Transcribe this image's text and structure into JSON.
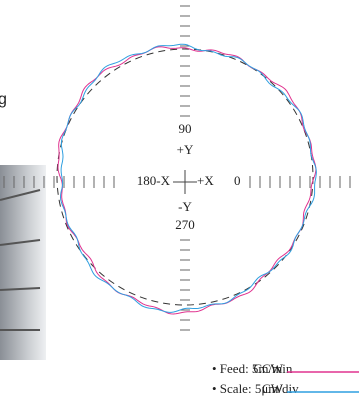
{
  "side_text": "g",
  "axis_labels": {
    "top_angle": "90",
    "top_axis": "+Y",
    "left": "180-X",
    "right_axis": "+X",
    "right_angle": "0",
    "bottom_axis": "-Y",
    "bottom_angle": "270"
  },
  "notes": [
    "• Feed: 5m/min",
    "• Scale: 5μm/div"
  ],
  "legend": [
    {
      "name": "CCW",
      "color": "#e0338f"
    },
    {
      "name": "CW",
      "color": "#2f9fe0"
    }
  ]
}
